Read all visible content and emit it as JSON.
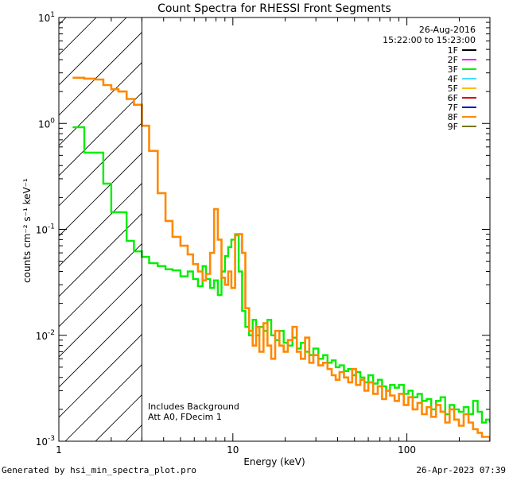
{
  "chart_data": {
    "type": "line",
    "title": "Count Spectra for RHESSI Front Segments",
    "xlabel": "Energy (keV)",
    "ylabel": "counts cm⁻² s⁻¹ keV⁻¹",
    "x_scale": "log",
    "y_scale": "log",
    "xlim": [
      1,
      300
    ],
    "ylim": [
      0.001,
      10
    ],
    "x_ticks": [
      {
        "value": 1,
        "label": "1"
      },
      {
        "value": 10,
        "label": "10"
      },
      {
        "value": 100,
        "label": "100"
      }
    ],
    "y_ticks": [
      {
        "value": 10,
        "base": "10",
        "exp": "1"
      },
      {
        "value": 1,
        "base": "10",
        "exp": "0"
      },
      {
        "value": 0.1,
        "base": "10",
        "exp": "-1"
      },
      {
        "value": 0.01,
        "base": "10",
        "exp": "-2"
      },
      {
        "value": 0.001,
        "base": "10",
        "exp": "-3"
      }
    ],
    "hatched_region_xmax": 3,
    "header_date": "26-Aug-2016",
    "header_time": "15:22:00 to 15:23:00",
    "legend": [
      {
        "name": "1F",
        "color": "#000000"
      },
      {
        "name": "2F",
        "color": "#ff00ff"
      },
      {
        "name": "3F",
        "color": "#00ee00"
      },
      {
        "name": "4F",
        "color": "#44ddff"
      },
      {
        "name": "5F",
        "color": "#ffbb00"
      },
      {
        "name": "6F",
        "color": "#dd0000"
      },
      {
        "name": "7F",
        "color": "#0000cc"
      },
      {
        "name": "8F",
        "color": "#ff8800"
      },
      {
        "name": "9F",
        "color": "#777700"
      }
    ],
    "annotations": [
      "Includes Background",
      "Att A0, FDecim 1"
    ],
    "series": [
      {
        "name": "3F",
        "color": "#00ee00",
        "x": [
          1.2,
          1.4,
          1.6,
          1.8,
          2.0,
          2.2,
          2.45,
          2.7,
          3.0,
          3.3,
          3.7,
          4.1,
          4.5,
          5.0,
          5.5,
          5.9,
          6.3,
          6.7,
          7.0,
          7.4,
          7.8,
          8.2,
          8.6,
          9.0,
          9.4,
          9.8,
          10.3,
          10.8,
          11.3,
          11.8,
          12.4,
          13.0,
          13.6,
          14.2,
          15.0,
          15.8,
          16.6,
          17.5,
          18.5,
          19.6,
          20.7,
          22,
          23.3,
          24.6,
          26,
          27.5,
          29,
          31,
          33,
          35,
          37,
          39,
          41,
          43.5,
          46,
          48.5,
          51,
          54,
          57,
          60,
          64,
          68,
          72,
          76,
          80,
          85,
          90,
          96,
          102,
          108,
          115,
          122,
          130,
          138,
          147,
          156,
          166,
          176,
          187,
          199,
          212,
          226,
          240,
          255,
          270,
          285,
          300
        ],
        "y": [
          0.92,
          0.53,
          0.53,
          0.27,
          0.145,
          0.145,
          0.078,
          0.062,
          0.055,
          0.048,
          0.045,
          0.042,
          0.041,
          0.036,
          0.04,
          0.034,
          0.029,
          0.045,
          0.034,
          0.028,
          0.033,
          0.024,
          0.04,
          0.056,
          0.068,
          0.08,
          0.09,
          0.04,
          0.017,
          0.012,
          0.01,
          0.014,
          0.01,
          0.012,
          0.011,
          0.014,
          0.01,
          0.009,
          0.011,
          0.0085,
          0.008,
          0.0095,
          0.0075,
          0.0085,
          0.007,
          0.0065,
          0.0075,
          0.006,
          0.0065,
          0.0055,
          0.0058,
          0.005,
          0.0052,
          0.0046,
          0.0048,
          0.0042,
          0.0045,
          0.004,
          0.0036,
          0.0042,
          0.0035,
          0.0038,
          0.0033,
          0.003,
          0.0034,
          0.0032,
          0.0034,
          0.0028,
          0.003,
          0.0026,
          0.0028,
          0.0024,
          0.0025,
          0.002,
          0.0024,
          0.0026,
          0.0018,
          0.0022,
          0.002,
          0.0019,
          0.0021,
          0.0018,
          0.0024,
          0.0019,
          0.0015,
          0.0016,
          0.0015
        ]
      },
      {
        "name": "8F",
        "color": "#ff8800",
        "x": [
          1.2,
          1.4,
          1.6,
          1.8,
          2.0,
          2.2,
          2.45,
          2.7,
          3.0,
          3.3,
          3.7,
          4.1,
          4.5,
          5.0,
          5.5,
          5.9,
          6.3,
          6.7,
          7.0,
          7.4,
          7.8,
          8.2,
          8.6,
          9.0,
          9.4,
          9.8,
          10.3,
          10.8,
          11.3,
          11.8,
          12.4,
          13.0,
          13.6,
          14.2,
          15.0,
          15.8,
          16.6,
          17.5,
          18.5,
          19.6,
          20.7,
          22,
          23.3,
          24.6,
          26,
          27.5,
          29,
          31,
          33,
          35,
          37,
          39,
          41,
          43.5,
          46,
          48.5,
          51,
          54,
          57,
          60,
          64,
          68,
          72,
          76,
          80,
          85,
          90,
          96,
          102,
          108,
          115,
          122,
          130,
          138,
          147,
          156,
          166,
          176,
          187,
          199,
          212,
          226,
          240,
          255,
          270,
          285,
          300
        ],
        "y": [
          2.7,
          2.65,
          2.6,
          2.3,
          2.1,
          2.0,
          1.7,
          1.5,
          0.95,
          0.55,
          0.22,
          0.12,
          0.085,
          0.07,
          0.058,
          0.047,
          0.04,
          0.033,
          0.038,
          0.06,
          0.155,
          0.08,
          0.035,
          0.03,
          0.04,
          0.028,
          0.088,
          0.09,
          0.06,
          0.018,
          0.011,
          0.008,
          0.012,
          0.007,
          0.013,
          0.008,
          0.006,
          0.011,
          0.008,
          0.007,
          0.009,
          0.012,
          0.007,
          0.006,
          0.0095,
          0.0055,
          0.0065,
          0.0052,
          0.0055,
          0.0048,
          0.0042,
          0.0038,
          0.0045,
          0.004,
          0.0036,
          0.0048,
          0.0034,
          0.0038,
          0.003,
          0.0036,
          0.0028,
          0.0033,
          0.0025,
          0.003,
          0.0027,
          0.0024,
          0.0028,
          0.0022,
          0.0026,
          0.002,
          0.0023,
          0.0018,
          0.0021,
          0.0017,
          0.0022,
          0.0019,
          0.0015,
          0.002,
          0.0016,
          0.0014,
          0.0018,
          0.0015,
          0.0013,
          0.0012,
          0.0011,
          0.0011,
          0.001
        ]
      }
    ]
  },
  "footer": {
    "left": "Generated by hsi_min_spectra_plot.pro",
    "right": "26-Apr-2023 07:39"
  }
}
